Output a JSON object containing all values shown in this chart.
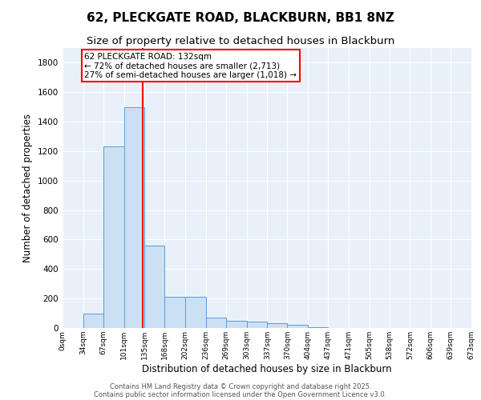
{
  "title1": "62, PLECKGATE ROAD, BLACKBURN, BB1 8NZ",
  "title2": "Size of property relative to detached houses in Blackburn",
  "xlabel": "Distribution of detached houses by size in Blackburn",
  "ylabel": "Number of detached properties",
  "bar_edges": [
    0,
    34,
    67,
    101,
    135,
    168,
    202,
    236,
    269,
    303,
    337,
    370,
    404,
    437,
    471,
    505,
    538,
    572,
    606,
    639,
    673
  ],
  "bar_heights": [
    0,
    100,
    1230,
    1500,
    560,
    210,
    210,
    70,
    50,
    45,
    30,
    20,
    5,
    0,
    0,
    0,
    0,
    0,
    0,
    0
  ],
  "bar_color": "#cce0f5",
  "bar_edge_color": "#5b9bd5",
  "property_line_x": 132,
  "property_line_color": "red",
  "ylim": [
    0,
    1900
  ],
  "xlim": [
    0,
    673
  ],
  "annotation_text": "62 PLECKGATE ROAD: 132sqm\n← 72% of detached houses are smaller (2,713)\n27% of semi-detached houses are larger (1,018) →",
  "annotation_box_color": "red",
  "annotation_box_facecolor": "white",
  "footer_line1": "Contains HM Land Registry data © Crown copyright and database right 2025.",
  "footer_line2": "Contains public sector information licensed under the Open Government Licence v3.0.",
  "background_color": "#e8f1fa",
  "grid_color": "white",
  "title1_fontsize": 11,
  "title2_fontsize": 9.5,
  "tick_labels": [
    "0sqm",
    "34sqm",
    "67sqm",
    "101sqm",
    "135sqm",
    "168sqm",
    "202sqm",
    "236sqm",
    "269sqm",
    "303sqm",
    "337sqm",
    "370sqm",
    "404sqm",
    "437sqm",
    "471sqm",
    "505sqm",
    "538sqm",
    "572sqm",
    "606sqm",
    "639sqm",
    "673sqm"
  ]
}
